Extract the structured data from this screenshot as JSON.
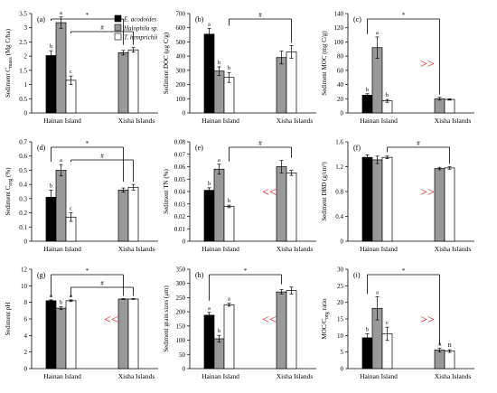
{
  "colors": {
    "E": "#000000",
    "H": "#999999",
    "T": "#ffffff",
    "annot": "#e8201c",
    "axis": "#000000"
  },
  "legend": [
    "E. acodoides",
    "Halophila sp.",
    "T. hemprichii"
  ],
  "chart_data": [
    {
      "type": "bar",
      "label": "(a)",
      "ylabel": "Sediment C_mass (Mg C/ha)",
      "categories": [
        "Hainan Island",
        "Xisha Islands"
      ],
      "ylim": [
        0,
        3.5
      ],
      "yticks": [
        "0",
        "0.5",
        "1",
        "1.5",
        "2",
        "2.5",
        "3",
        "3.5"
      ],
      "series": [
        {
          "name": "E. acodoides",
          "values": [
            2.02,
            null
          ],
          "errors": [
            0.17,
            null
          ],
          "letters": [
            "b",
            ""
          ]
        },
        {
          "name": "Halophila sp.",
          "values": [
            3.18,
            2.12
          ],
          "errors": [
            0.2,
            0.08
          ],
          "letters": [
            "a",
            ""
          ]
        },
        {
          "name": "T. hemprichii",
          "values": [
            1.15,
            2.22
          ],
          "errors": [
            0.15,
            0.08
          ],
          "letters": [
            "c",
            ""
          ]
        }
      ],
      "brackets": [
        {
          "symbol": "*",
          "from": "Hainan Island",
          "to": "Xisha Islands"
        },
        {
          "symbol": "#",
          "from": "Hainan Island",
          "to": "Xisha Islands"
        }
      ],
      "annotation": ""
    },
    {
      "type": "bar",
      "label": "(b)",
      "ylabel": "Sediment DOC (μg C/g)",
      "categories": [
        "Hainan Island",
        "Xisha Islands"
      ],
      "ylim": [
        0,
        700
      ],
      "yticks": [
        "0",
        "100",
        "200",
        "300",
        "400",
        "500",
        "600",
        "700"
      ],
      "series": [
        {
          "name": "E. acodoides",
          "values": [
            555,
            null
          ],
          "errors": [
            40,
            null
          ],
          "letters": [
            "a",
            ""
          ]
        },
        {
          "name": "Halophila sp.",
          "values": [
            295,
            390
          ],
          "errors": [
            30,
            45
          ],
          "letters": [
            "b",
            ""
          ]
        },
        {
          "name": "T. hemprichii",
          "values": [
            250,
            430
          ],
          "errors": [
            35,
            45
          ],
          "letters": [
            "b",
            ""
          ]
        }
      ],
      "brackets": [
        {
          "symbol": "#",
          "from": "Hainan Island",
          "to": "Xisha Islands"
        }
      ],
      "annotation": ""
    },
    {
      "type": "bar",
      "label": "(c)",
      "ylabel": "Sediment MOC (mg C/g)",
      "categories": [
        "Hainan Island",
        "Xisha Islands"
      ],
      "ylim": [
        0,
        140
      ],
      "yticks": [
        "0",
        "20",
        "40",
        "60",
        "80",
        "100",
        "120",
        "140"
      ],
      "series": [
        {
          "name": "E. acodoides",
          "values": [
            25,
            null
          ],
          "errors": [
            2,
            null
          ],
          "letters": [
            "b",
            ""
          ]
        },
        {
          "name": "Halophila sp.",
          "values": [
            92,
            20
          ],
          "errors": [
            15,
            2
          ],
          "letters": [
            "a",
            ""
          ]
        },
        {
          "name": "T. hemprichii",
          "values": [
            17,
            19
          ],
          "errors": [
            2,
            1
          ],
          "letters": [
            "b",
            ""
          ]
        }
      ],
      "brackets": [
        {
          "symbol": "*",
          "from": "Hainan Island",
          "to": "Xisha Islands"
        }
      ],
      "annotation": ">>"
    },
    {
      "type": "bar",
      "label": "(d)",
      "ylabel": "Sediment C_org (%)",
      "categories": [
        "Hainan Island",
        "Xisha Islands"
      ],
      "ylim": [
        0,
        0.7
      ],
      "yticks": [
        "0",
        "0.1",
        "0.2",
        "0.3",
        "0.4",
        "0.5",
        "0.6",
        "0.7"
      ],
      "series": [
        {
          "name": "E. acodoides",
          "values": [
            0.31,
            null
          ],
          "errors": [
            0.05,
            null
          ],
          "letters": [
            "b",
            ""
          ]
        },
        {
          "name": "Halophila sp.",
          "values": [
            0.5,
            0.36
          ],
          "errors": [
            0.04,
            0.015
          ],
          "letters": [
            "a",
            ""
          ]
        },
        {
          "name": "T. hemprichii",
          "values": [
            0.17,
            0.38
          ],
          "errors": [
            0.03,
            0.02
          ],
          "letters": [
            "c",
            ""
          ]
        }
      ],
      "brackets": [
        {
          "symbol": "*",
          "from": "Hainan Island",
          "to": "Xisha Islands"
        },
        {
          "symbol": "#",
          "from": "Hainan Island",
          "to": "Xisha Islands"
        }
      ],
      "annotation": ""
    },
    {
      "type": "bar",
      "label": "(e)",
      "ylabel": "Sediment TN (%)",
      "categories": [
        "Hainan Island",
        "Xisha Islands"
      ],
      "ylim": [
        0,
        0.08
      ],
      "yticks": [
        "0",
        "0.01",
        "0.02",
        "0.03",
        "0.04",
        "0.05",
        "0.06",
        "0.07",
        "0.08"
      ],
      "series": [
        {
          "name": "E. acodoides",
          "values": [
            0.041,
            null
          ],
          "errors": [
            0.002,
            null
          ],
          "letters": [
            "b",
            ""
          ]
        },
        {
          "name": "Halophila sp.",
          "values": [
            0.058,
            0.06
          ],
          "errors": [
            0.004,
            0.005
          ],
          "letters": [
            "a",
            ""
          ]
        },
        {
          "name": "T. hemprichii",
          "values": [
            0.028,
            0.055
          ],
          "errors": [
            0.001,
            0.002
          ],
          "letters": [
            "b",
            ""
          ]
        }
      ],
      "brackets": [
        {
          "symbol": "#",
          "from": "Hainan Island",
          "to": "Xisha Islands"
        }
      ],
      "annotation": "<<"
    },
    {
      "type": "bar",
      "label": "(f)",
      "ylabel": "Sediment DBD (g/cm³)",
      "categories": [
        "Hainan Island",
        "Xisha Islands"
      ],
      "ylim": [
        0,
        1.6
      ],
      "yticks": [
        "0",
        "0.4",
        "0.8",
        "1.2",
        "1.6"
      ],
      "series": [
        {
          "name": "E. acodoides",
          "values": [
            1.35,
            null
          ],
          "errors": [
            0.04,
            null
          ],
          "letters": [
            "",
            ""
          ]
        },
        {
          "name": "Halophila sp.",
          "values": [
            1.31,
            1.17
          ],
          "errors": [
            0.06,
            0.02
          ],
          "letters": [
            "",
            ""
          ]
        },
        {
          "name": "T. hemprichii",
          "values": [
            1.35,
            1.18
          ],
          "errors": [
            0.02,
            0.02
          ],
          "letters": [
            "",
            ""
          ]
        }
      ],
      "brackets": [
        {
          "symbol": "#",
          "from": "Hainan Island",
          "to": "Xisha Islands"
        }
      ],
      "annotation": ">>"
    },
    {
      "type": "bar",
      "label": "(g)",
      "ylabel": "Sediment pH",
      "categories": [
        "Hainan Island",
        "Xisha Islands"
      ],
      "ylim": [
        0,
        12
      ],
      "yticks": [
        "0",
        "2",
        "4",
        "6",
        "8",
        "10",
        "12"
      ],
      "series": [
        {
          "name": "E. acodoides",
          "values": [
            8.2,
            null
          ],
          "errors": [
            0.1,
            null
          ],
          "letters": [
            "a",
            ""
          ]
        },
        {
          "name": "Halophila sp.",
          "values": [
            7.3,
            8.4
          ],
          "errors": [
            0.15,
            0.05
          ],
          "letters": [
            "b",
            ""
          ]
        },
        {
          "name": "T. hemprichii",
          "values": [
            8.2,
            8.4
          ],
          "errors": [
            0.1,
            0.05
          ],
          "letters": [
            "a",
            ""
          ]
        }
      ],
      "brackets": [
        {
          "symbol": "*",
          "from": "Hainan Island",
          "to": "Xisha Islands"
        },
        {
          "symbol": "#",
          "from": "Hainan Island",
          "to": "Xisha Islands"
        }
      ],
      "annotation": "<<"
    },
    {
      "type": "bar",
      "label": "(h)",
      "ylabel": "Sediment grain sizes (μm)",
      "categories": [
        "Hainan Island",
        "Xisha Islands"
      ],
      "ylim": [
        0,
        350
      ],
      "yticks": [
        "0",
        "50",
        "100",
        "150",
        "200",
        "250",
        "300",
        "350"
      ],
      "series": [
        {
          "name": "E. acodoides",
          "values": [
            188,
            null
          ],
          "errors": [
            10,
            null
          ],
          "letters": [
            "a",
            ""
          ]
        },
        {
          "name": "Halophila sp.",
          "values": [
            105,
            270
          ],
          "errors": [
            12,
            8
          ],
          "letters": [
            "b",
            ""
          ]
        },
        {
          "name": "T. hemprichii",
          "values": [
            225,
            275
          ],
          "errors": [
            5,
            12
          ],
          "letters": [
            "a",
            ""
          ]
        }
      ],
      "brackets": [
        {
          "symbol": "*",
          "from": "Hainan Island",
          "to": "Xisha Islands"
        }
      ],
      "annotation": "<<"
    },
    {
      "type": "bar",
      "label": "(i)",
      "ylabel": "MOC/C_org ratio",
      "categories": [
        "Hainan Island",
        "Xisha Islands"
      ],
      "ylim": [
        0,
        30
      ],
      "yticks": [
        "0",
        "5",
        "10",
        "15",
        "20",
        "25",
        "30"
      ],
      "series": [
        {
          "name": "E. acodoides",
          "values": [
            9.3,
            null
          ],
          "errors": [
            1.2,
            null
          ],
          "letters": [
            "b",
            ""
          ]
        },
        {
          "name": "Halophila sp.",
          "values": [
            18.2,
            5.6
          ],
          "errors": [
            3.5,
            0.6
          ],
          "letters": [
            "a",
            "A"
          ]
        },
        {
          "name": "T. hemprichii",
          "values": [
            10.5,
            5.3
          ],
          "errors": [
            2,
            0.4
          ],
          "letters": [
            "c",
            "B"
          ]
        }
      ],
      "brackets": [
        {
          "symbol": "*",
          "from": "Hainan Island",
          "to": "Xisha Islands"
        }
      ],
      "annotation": ">>"
    }
  ]
}
